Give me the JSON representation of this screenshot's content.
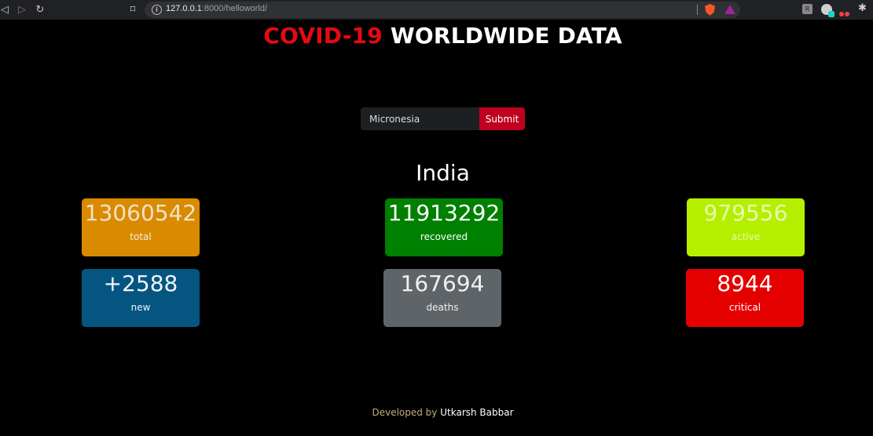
{
  "browser": {
    "url_host": "127.0.0.1",
    "url_path": ":8000/helloworld/"
  },
  "header": {
    "title_accent": "COVID-19",
    "title_rest": "WORLDWIDE DATA"
  },
  "search": {
    "value": "Micronesia",
    "submit_label": "Submit"
  },
  "country": "India",
  "stats": {
    "total": {
      "value": "13060542",
      "label": "total"
    },
    "recovered": {
      "value": "11913292",
      "label": "recovered"
    },
    "active": {
      "value": "979556",
      "label": "active"
    },
    "new": {
      "value": "+2588",
      "label": "new"
    },
    "deaths": {
      "value": "167694",
      "label": "deaths"
    },
    "critical": {
      "value": "8944",
      "label": "critical"
    }
  },
  "footer": {
    "prefix": "Developed by",
    "author": "Utkarsh Babbar"
  }
}
